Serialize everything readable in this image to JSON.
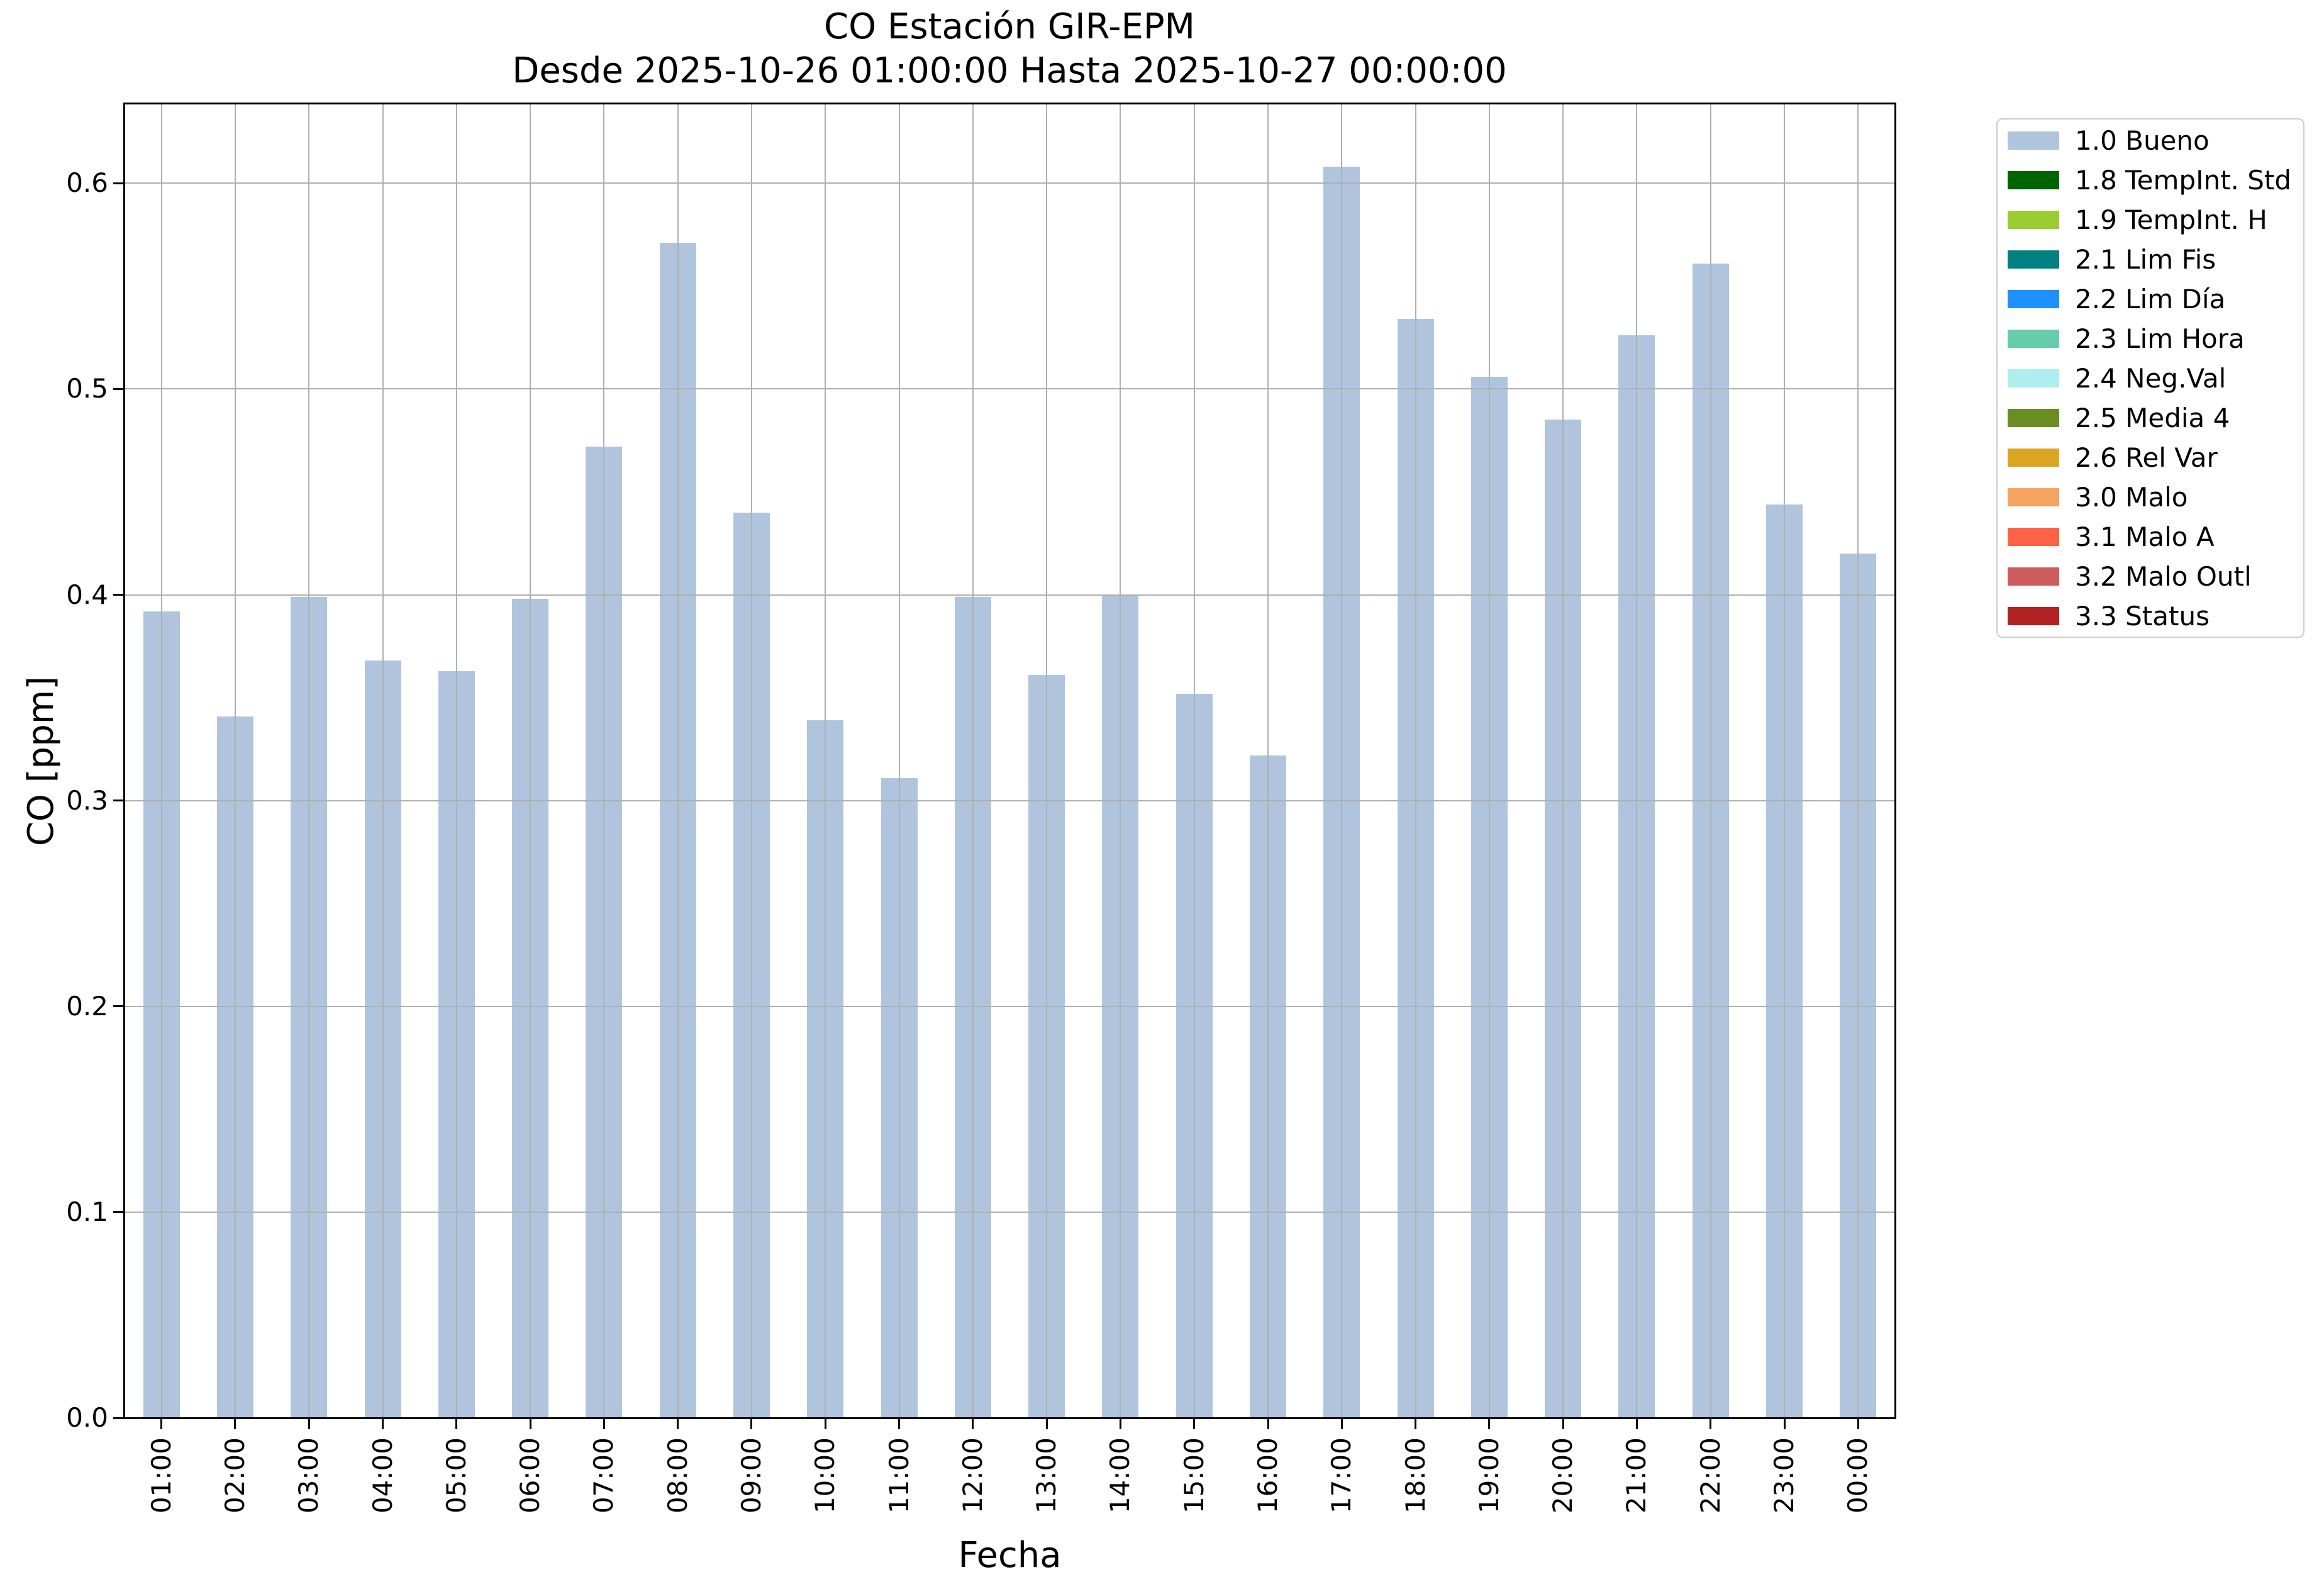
{
  "chart_data": {
    "type": "bar",
    "title": "CO Estación GIR-EPM",
    "subtitle": "Desde 2025-10-26 01:00:00 Hasta 2025-10-27 00:00:00",
    "xlabel": "Fecha",
    "ylabel": "CO [ppm]",
    "categories": [
      "01:00",
      "02:00",
      "03:00",
      "04:00",
      "05:00",
      "06:00",
      "07:00",
      "08:00",
      "09:00",
      "10:00",
      "11:00",
      "12:00",
      "13:00",
      "14:00",
      "15:00",
      "16:00",
      "17:00",
      "18:00",
      "19:00",
      "20:00",
      "21:00",
      "22:00",
      "23:00",
      "00:00"
    ],
    "values": [
      0.392,
      0.341,
      0.399,
      0.368,
      0.363,
      0.398,
      0.472,
      0.571,
      0.44,
      0.339,
      0.311,
      0.399,
      0.361,
      0.4,
      0.352,
      0.322,
      0.608,
      0.534,
      0.506,
      0.485,
      0.526,
      0.561,
      0.444,
      0.42
    ],
    "series": [
      {
        "name": "1.0 Bueno",
        "color": "#b0c4de"
      }
    ],
    "ylim": [
      0.0,
      0.6386
    ],
    "yticks": [
      "0.0",
      "0.1",
      "0.2",
      "0.3",
      "0.4",
      "0.5",
      "0.6"
    ],
    "grid": true,
    "legend_position": "outside-right",
    "legend_items": [
      {
        "label": "1.0 Bueno",
        "color": "#b0c4de"
      },
      {
        "label": "1.8 TempInt. Std",
        "color": "#006400"
      },
      {
        "label": "1.9 TempInt. H",
        "color": "#9acd32"
      },
      {
        "label": "2.1 Lim Fis",
        "color": "#008080"
      },
      {
        "label": "2.2 Lim Día",
        "color": "#1e90ff"
      },
      {
        "label": "2.3 Lim Hora",
        "color": "#66cdaa"
      },
      {
        "label": "2.4 Neg.Val",
        "color": "#afeeee"
      },
      {
        "label": "2.5 Media 4",
        "color": "#6b8e23"
      },
      {
        "label": "2.6 Rel Var",
        "color": "#daa520"
      },
      {
        "label": "3.0 Malo",
        "color": "#f4a460"
      },
      {
        "label": "3.1 Malo A",
        "color": "#ff6347"
      },
      {
        "label": "3.2 Malo Outl",
        "color": "#cd5c5c"
      },
      {
        "label": "3.3 Status",
        "color": "#b22222"
      }
    ]
  },
  "colors": {
    "background": "#ffffff",
    "bar": "#b0c4de",
    "grid": "#b0b0b0",
    "spine": "#000000",
    "text": "#000000",
    "legend_border": "#cccccc"
  }
}
